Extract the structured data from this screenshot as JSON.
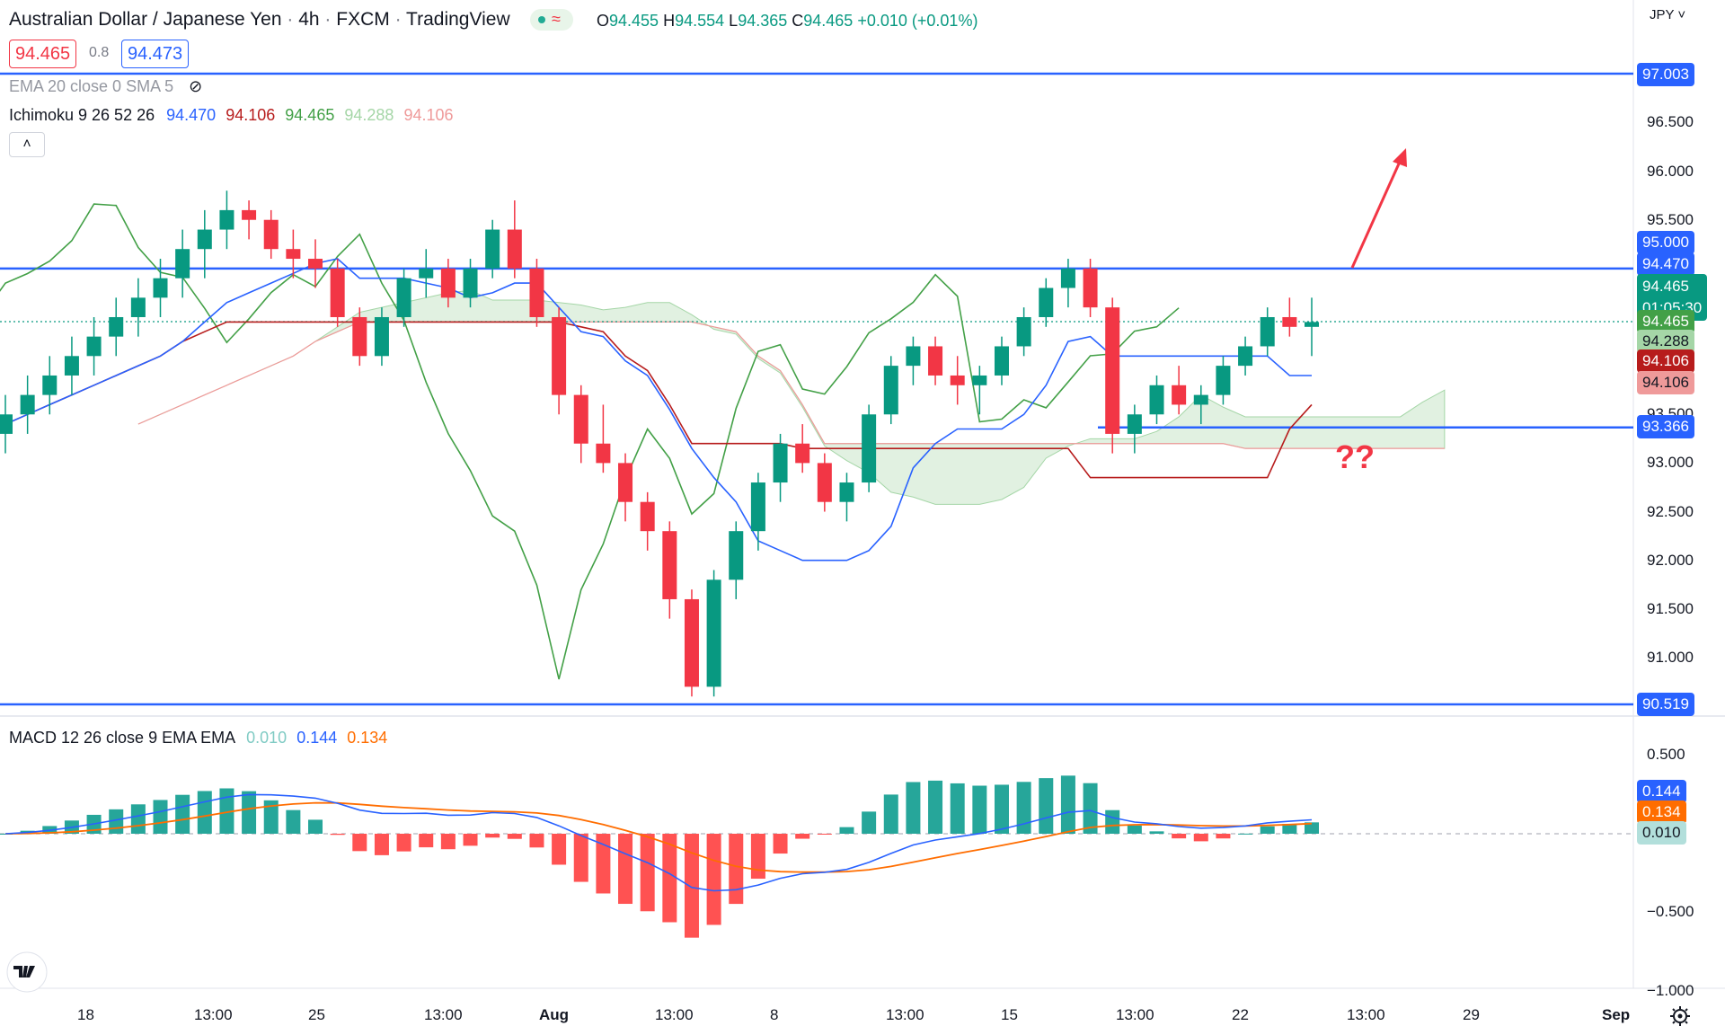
{
  "header": {
    "symbol": "Australian Dollar / Japanese Yen",
    "interval": "4h",
    "exchange": "FXCM",
    "platform": "TradingView",
    "ohlc": {
      "o_label": "O",
      "o": "94.455",
      "h_label": "H",
      "h": "94.554",
      "l_label": "L",
      "l": "94.365",
      "c_label": "C",
      "c": "94.465",
      "change": "+0.010 (+0.01%)"
    },
    "bid": "94.465",
    "spread": "0.8",
    "ask": "94.473",
    "currency": "JPY"
  },
  "indicators": {
    "ema_label": "EMA 20 close 0 SMA 5",
    "ichimoku_label": "Ichimoku 9 26 52 26",
    "ichimoku_values": [
      "94.470",
      "94.106",
      "94.465",
      "94.288",
      "94.106"
    ],
    "macd_label": "MACD 12 26 close 9 EMA EMA",
    "macd_values": [
      "0.010",
      "0.144",
      "0.134"
    ]
  },
  "colors": {
    "tenkan": "#2962ff",
    "kijun": "#b71c1c",
    "chikou": "#43a047",
    "span_a": "#a5d6a7",
    "span_b": "#ef9a9a",
    "up": "#089981",
    "down": "#f23645",
    "hline": "#2962ff",
    "macd": "#2962ff",
    "signal": "#ff6d00",
    "annotation": "#f23645"
  },
  "price_axis": {
    "ticks": [
      "96.500",
      "96.000",
      "95.500",
      "93.500",
      "93.000",
      "92.500",
      "92.000",
      "91.500",
      "91.000"
    ]
  },
  "macd_axis": {
    "ticks": [
      "0.500",
      "−0.500",
      "−1.000"
    ]
  },
  "price_labels": {
    "h97": "97.003",
    "h95": "95.000",
    "tenkan": "94.470",
    "last": "94.465",
    "countdown": "01:05:30",
    "chikou": "94.465",
    "span_a": "94.288",
    "kijun": "94.106",
    "span_b": "94.106",
    "h93": "93.366",
    "h90": "90.519"
  },
  "macd_labels": {
    "macd": "0.144",
    "signal": "0.134",
    "hist": "0.010"
  },
  "time_axis": {
    "labels": [
      "18",
      "13:00",
      "25",
      "13:00",
      "Aug",
      "13:00",
      "8",
      "13:00",
      "15",
      "13:00",
      "22",
      "13:00",
      "29",
      "Sep"
    ]
  },
  "annotation": {
    "text": "??"
  },
  "chart_data": {
    "type": "candlestick",
    "title": "Australian Dollar / Japanese Yen, 4h, FXCM",
    "y_range": [
      90.35,
      97.15
    ],
    "horizontal_levels": [
      97.003,
      95.0,
      93.366,
      90.519
    ],
    "candles_ohlc": [
      [
        93.3,
        93.7,
        93.1,
        93.5
      ],
      [
        93.5,
        93.9,
        93.3,
        93.7
      ],
      [
        93.7,
        94.1,
        93.5,
        93.9
      ],
      [
        93.9,
        94.3,
        93.7,
        94.1
      ],
      [
        94.1,
        94.5,
        93.9,
        94.3
      ],
      [
        94.3,
        94.7,
        94.1,
        94.5
      ],
      [
        94.5,
        94.9,
        94.3,
        94.7
      ],
      [
        94.7,
        95.1,
        94.5,
        94.9
      ],
      [
        94.9,
        95.4,
        94.7,
        95.2
      ],
      [
        95.2,
        95.6,
        94.9,
        95.4
      ],
      [
        95.4,
        95.8,
        95.2,
        95.6
      ],
      [
        95.6,
        95.7,
        95.3,
        95.5
      ],
      [
        95.5,
        95.6,
        95.1,
        95.2
      ],
      [
        95.2,
        95.4,
        94.9,
        95.1
      ],
      [
        95.1,
        95.3,
        94.8,
        95.0
      ],
      [
        95.0,
        95.1,
        94.4,
        94.5
      ],
      [
        94.5,
        94.6,
        94.0,
        94.1
      ],
      [
        94.1,
        94.6,
        94.0,
        94.5
      ],
      [
        94.5,
        95.0,
        94.4,
        94.9
      ],
      [
        94.9,
        95.2,
        94.7,
        95.0
      ],
      [
        95.0,
        95.1,
        94.6,
        94.7
      ],
      [
        94.7,
        95.1,
        94.6,
        95.0
      ],
      [
        95.0,
        95.5,
        94.9,
        95.4
      ],
      [
        95.4,
        95.7,
        94.9,
        95.0
      ],
      [
        95.0,
        95.1,
        94.4,
        94.5
      ],
      [
        94.5,
        94.6,
        93.5,
        93.7
      ],
      [
        93.7,
        93.8,
        93.0,
        93.2
      ],
      [
        93.2,
        93.6,
        92.9,
        93.0
      ],
      [
        93.0,
        93.1,
        92.4,
        92.6
      ],
      [
        92.6,
        92.7,
        92.1,
        92.3
      ],
      [
        92.3,
        92.4,
        91.4,
        91.6
      ],
      [
        91.6,
        91.7,
        90.6,
        90.7
      ],
      [
        90.7,
        91.9,
        90.6,
        91.8
      ],
      [
        91.8,
        92.4,
        91.6,
        92.3
      ],
      [
        92.3,
        92.9,
        92.1,
        92.8
      ],
      [
        92.8,
        93.3,
        92.6,
        93.2
      ],
      [
        93.2,
        93.4,
        92.9,
        93.0
      ],
      [
        93.0,
        93.1,
        92.5,
        92.6
      ],
      [
        92.6,
        92.9,
        92.4,
        92.8
      ],
      [
        92.8,
        93.6,
        92.7,
        93.5
      ],
      [
        93.5,
        94.1,
        93.4,
        94.0
      ],
      [
        94.0,
        94.3,
        93.8,
        94.2
      ],
      [
        94.2,
        94.3,
        93.8,
        93.9
      ],
      [
        93.9,
        94.1,
        93.6,
        93.8
      ],
      [
        93.8,
        94.0,
        93.5,
        93.9
      ],
      [
        93.9,
        94.3,
        93.8,
        94.2
      ],
      [
        94.2,
        94.6,
        94.1,
        94.5
      ],
      [
        94.5,
        94.9,
        94.4,
        94.8
      ],
      [
        94.8,
        95.1,
        94.6,
        95.0
      ],
      [
        95.0,
        95.1,
        94.5,
        94.6
      ],
      [
        94.6,
        94.7,
        93.1,
        93.3
      ],
      [
        93.3,
        93.6,
        93.1,
        93.5
      ],
      [
        93.5,
        93.9,
        93.4,
        93.8
      ],
      [
        93.8,
        94.0,
        93.5,
        93.6
      ],
      [
        93.6,
        93.8,
        93.4,
        93.7
      ],
      [
        93.7,
        94.1,
        93.6,
        94.0
      ],
      [
        94.0,
        94.3,
        93.9,
        94.2
      ],
      [
        94.2,
        94.6,
        94.1,
        94.5
      ],
      [
        94.5,
        94.7,
        94.3,
        94.4
      ],
      [
        94.4,
        94.7,
        94.1,
        94.45
      ]
    ]
  }
}
